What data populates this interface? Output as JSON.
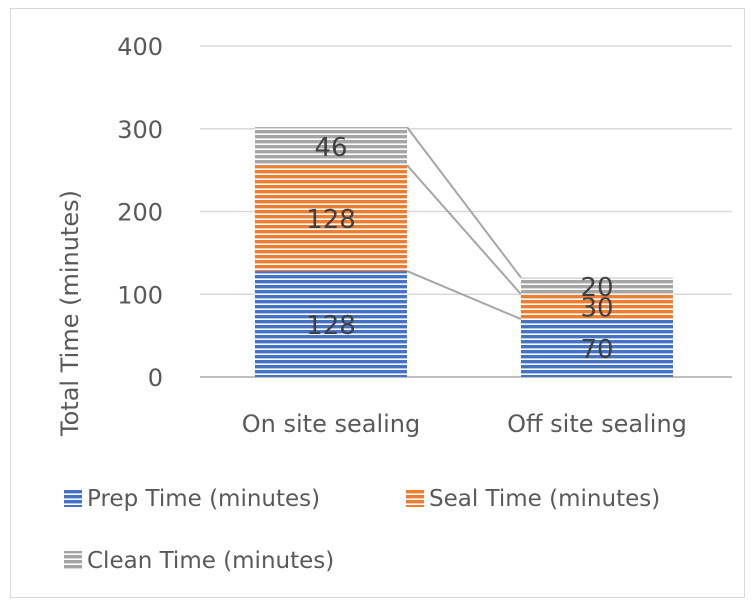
{
  "chart_data": {
    "type": "bar",
    "stacked": true,
    "title": "",
    "xlabel": "",
    "ylabel": "Total Time (minutes)",
    "ylim": [
      0,
      400
    ],
    "yticks": [
      0,
      100,
      200,
      300,
      400
    ],
    "grid": true,
    "legend_position": "bottom",
    "series_lines": true,
    "categories": [
      "On site sealing",
      "Off site sealing"
    ],
    "series": [
      {
        "name": "Prep Time (minutes)",
        "values": [
          128,
          70
        ],
        "color": "#4472C4"
      },
      {
        "name": "Seal Time (minutes)",
        "values": [
          128,
          30
        ],
        "color": "#ED7D31"
      },
      {
        "name": "Clean Time (minutes)",
        "values": [
          46,
          20
        ],
        "color": "#A5A5A5"
      }
    ]
  }
}
